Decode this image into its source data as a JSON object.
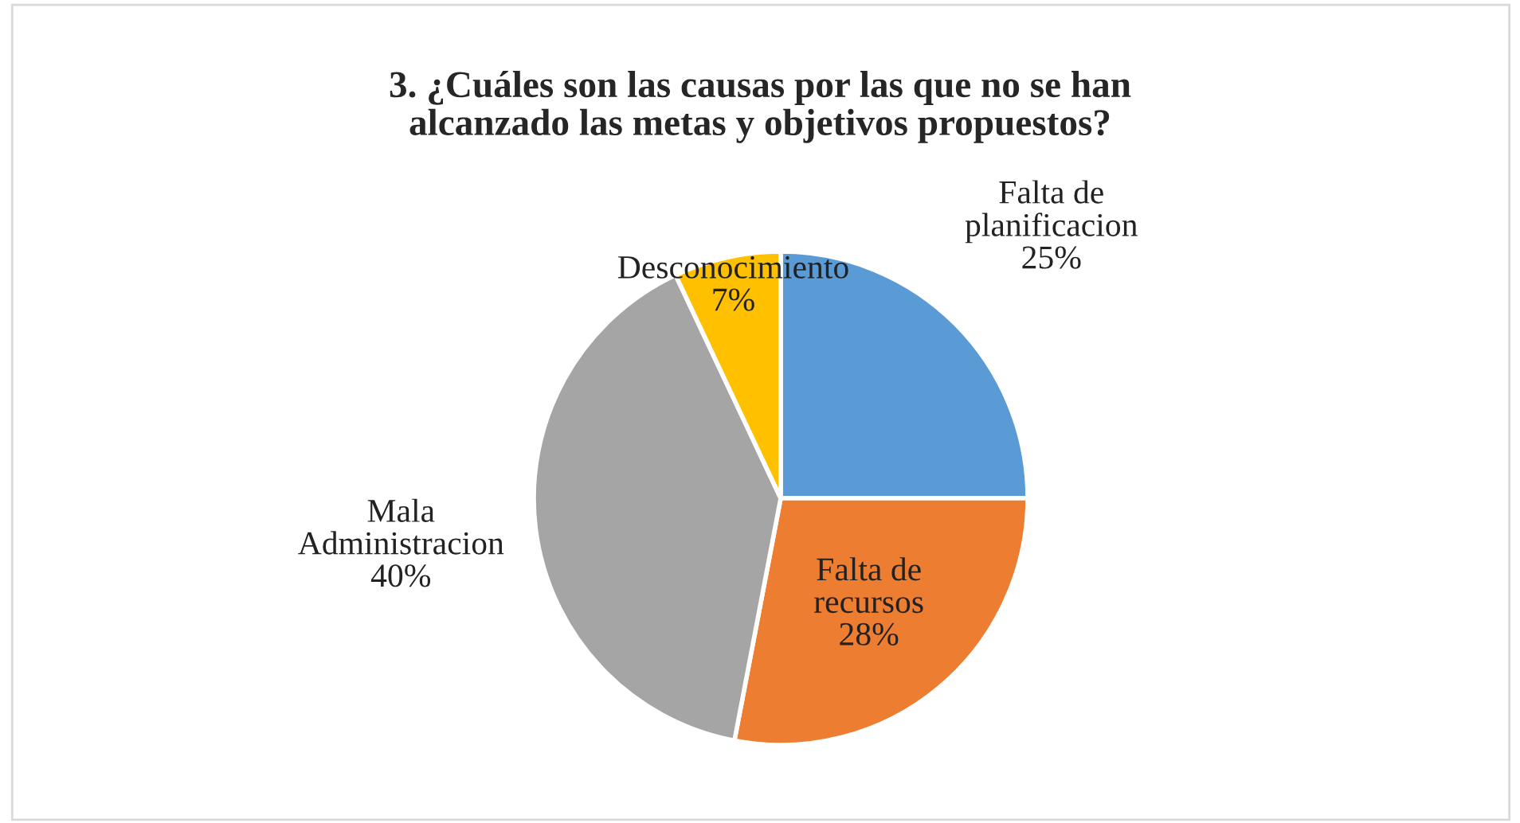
{
  "chart_data": {
    "type": "pie",
    "title": "3. ¿Cuáles son las causas por las que no se han alcanzado las metas y objetivos propuestos?",
    "categories": [
      "Falta de planificacion",
      "Falta de recursos",
      "Mala Administracion",
      "Desconocimiento"
    ],
    "values": [
      25,
      28,
      40,
      7
    ],
    "colors": [
      "#5b9bd5",
      "#ed7d31",
      "#a5a5a5",
      "#ffc000"
    ],
    "value_labels": [
      "25%",
      "28%",
      "40%",
      "7%"
    ],
    "legend": false
  }
}
